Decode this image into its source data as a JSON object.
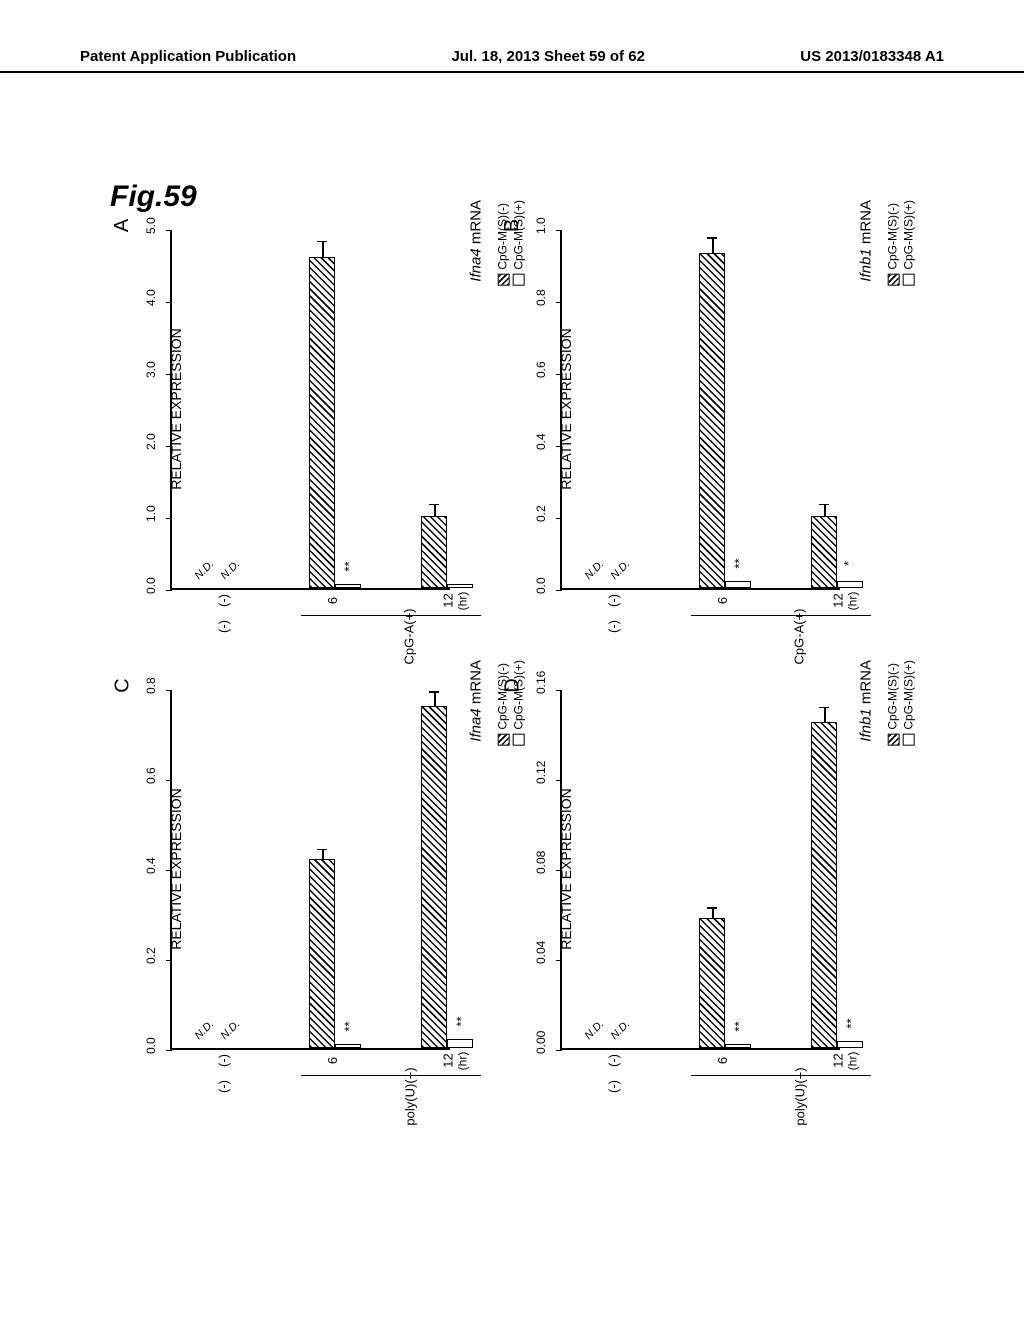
{
  "header": {
    "left": "Patent Application Publication",
    "center": "Jul. 18, 2013  Sheet 59 of 62",
    "right": "US 2013/0183348 A1"
  },
  "figure_label": "Fig.59",
  "ylabel": "RELATIVE EXPRESSION",
  "legend": {
    "hatched": "CpG-M(S)(-)",
    "blank": "CpG-M(S)(+)"
  },
  "panels": [
    {
      "letter": "A",
      "gene": "Ifna4",
      "title_suffix": " mRNA",
      "stimulus": "CpG-A(+)",
      "xunit": "(hr)",
      "yticks": [
        "0.0",
        "1.0",
        "2.0",
        "3.0",
        "4.0",
        "5.0"
      ],
      "ymax": 5.0,
      "groups": [
        {
          "x": "(-)",
          "hatched": null,
          "blank": null,
          "nd": true
        },
        {
          "x": "6",
          "hatched": 4.6,
          "blank": 0.05,
          "err_h": 0.2,
          "err_b": 0.01,
          "sig": "**"
        },
        {
          "x": "12",
          "hatched": 1.0,
          "blank": 0.05,
          "err_h": 0.15,
          "err_b": 0.01,
          "sig": ""
        }
      ]
    },
    {
      "letter": "B",
      "gene": "Ifnb1",
      "title_suffix": " mRNA",
      "stimulus": "CpG-A(+)",
      "xunit": "(hr)",
      "yticks": [
        "0.0",
        "0.2",
        "0.4",
        "0.6",
        "0.8",
        "1.0"
      ],
      "ymax": 1.0,
      "groups": [
        {
          "x": "(-)",
          "hatched": null,
          "blank": null,
          "nd": true
        },
        {
          "x": "6",
          "hatched": 0.93,
          "blank": 0.02,
          "err_h": 0.04,
          "err_b": 0.005,
          "sig": "**"
        },
        {
          "x": "12",
          "hatched": 0.2,
          "blank": 0.02,
          "err_h": 0.03,
          "err_b": 0.005,
          "sig": "*"
        }
      ]
    },
    {
      "letter": "C",
      "gene": "Ifna4",
      "title_suffix": " mRNA",
      "stimulus": "poly(U)(+)",
      "xunit": "(hr)",
      "yticks": [
        "0.0",
        "0.2",
        "0.4",
        "0.6",
        "0.8"
      ],
      "ymax": 0.8,
      "groups": [
        {
          "x": "(-)",
          "hatched": null,
          "blank": null,
          "nd": true
        },
        {
          "x": "6",
          "hatched": 0.42,
          "blank": 0.01,
          "err_h": 0.02,
          "err_b": 0.003,
          "sig": "**"
        },
        {
          "x": "12",
          "hatched": 0.76,
          "blank": 0.02,
          "err_h": 0.03,
          "err_b": 0.005,
          "sig": "**"
        }
      ]
    },
    {
      "letter": "D",
      "gene": "Ifnb1",
      "title_suffix": " mRNA",
      "stimulus": "poly(U)(+)",
      "xunit": "(hr)",
      "yticks": [
        "0.00",
        "0.04",
        "0.08",
        "0.12",
        "0.16"
      ],
      "ymax": 0.16,
      "groups": [
        {
          "x": "(-)",
          "hatched": null,
          "blank": null,
          "nd": true
        },
        {
          "x": "6",
          "hatched": 0.058,
          "blank": 0.002,
          "err_h": 0.004,
          "err_b": 0.001,
          "sig": "**"
        },
        {
          "x": "12",
          "hatched": 0.145,
          "blank": 0.003,
          "err_h": 0.006,
          "err_b": 0.001,
          "sig": "**"
        }
      ]
    }
  ]
}
